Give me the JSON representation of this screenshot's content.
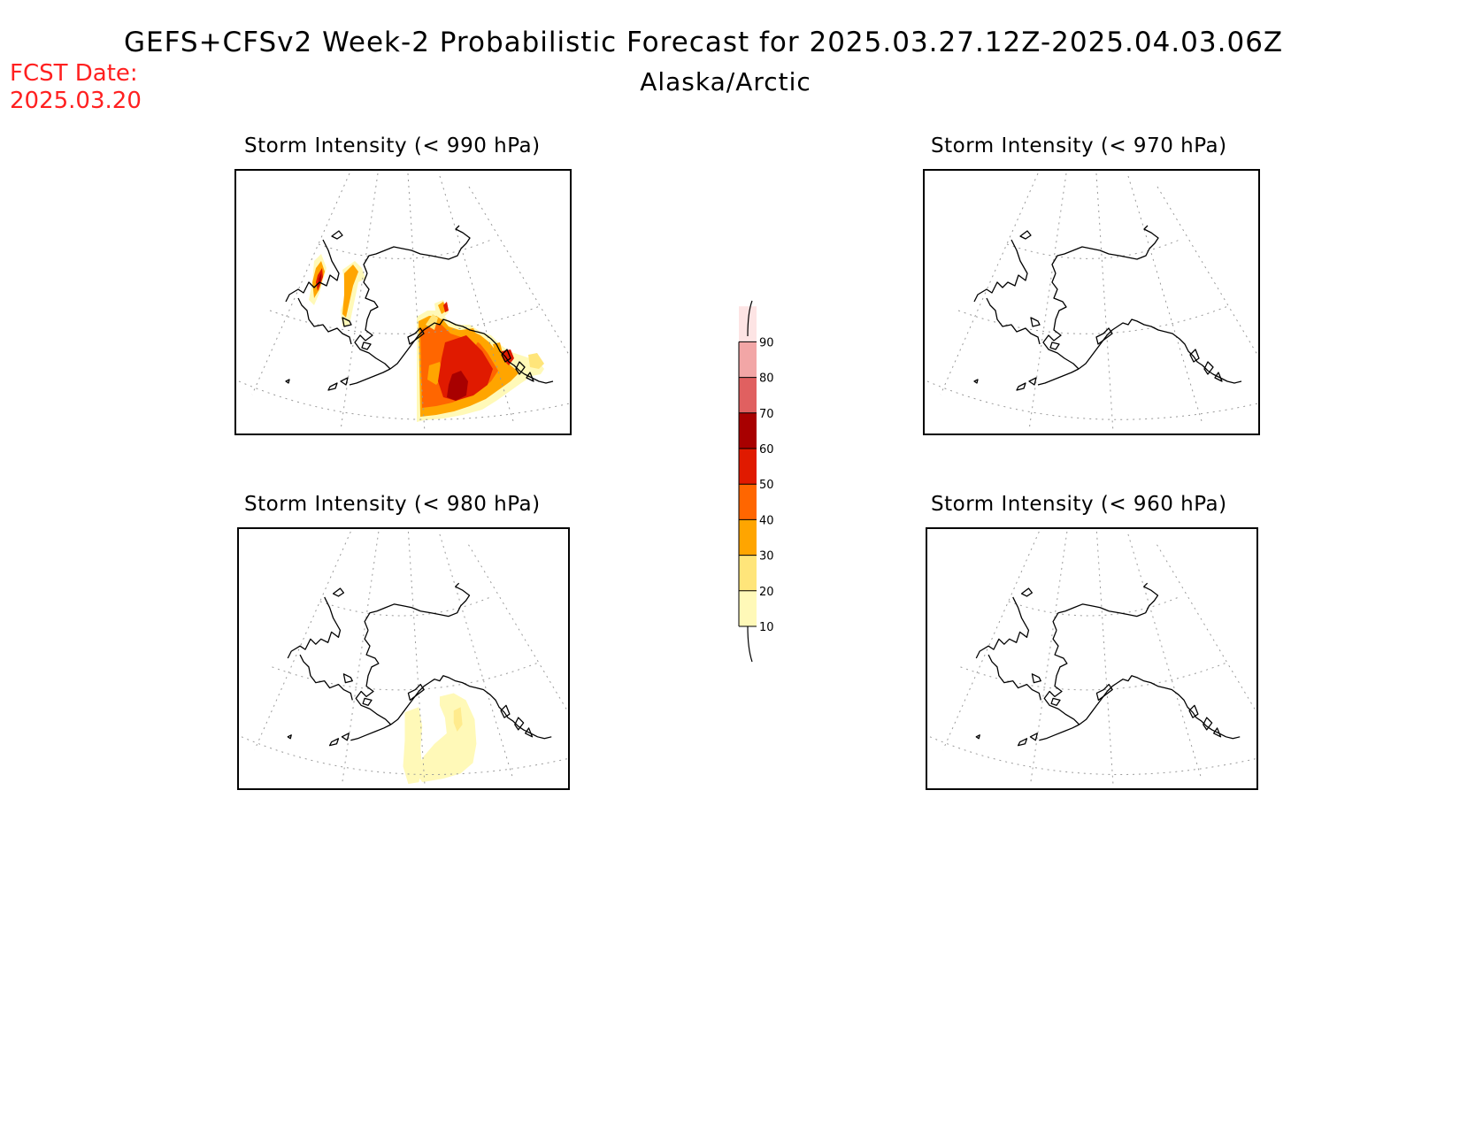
{
  "title": "GEFS+CFSv2 Week-2 Probabilistic Forecast for 2025.03.27.12Z-2025.04.03.06Z",
  "subtitle": "Alaska/Arctic",
  "fcst_date_label": "FCST Date:",
  "fcst_date_value": "2025.03.20",
  "panels": [
    {
      "title": "Storm Intensity (< 990 hPa)"
    },
    {
      "title": "Storm Intensity (< 970 hPa)"
    },
    {
      "title": "Storm Intensity (< 980 hPa)"
    },
    {
      "title": "Storm Intensity (< 960 hPa)"
    }
  ],
  "colorbar": {
    "levels": [
      "10",
      "20",
      "30",
      "40",
      "50",
      "60",
      "70",
      "80",
      "90"
    ],
    "colors": [
      "#fff9b8",
      "#ffe57a",
      "#ffa500",
      "#ff6600",
      "#e01a00",
      "#a80000",
      "#e06060",
      "#f2a6a6",
      "#fde4e4"
    ]
  }
}
